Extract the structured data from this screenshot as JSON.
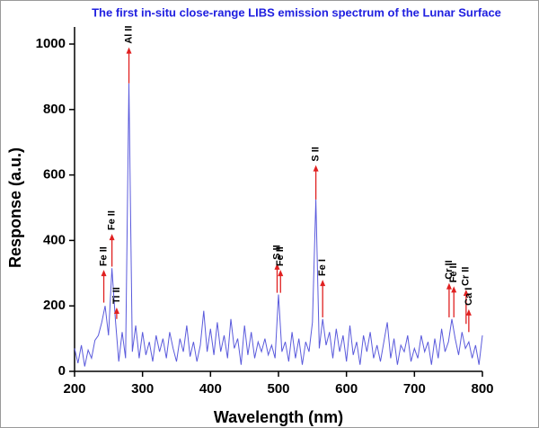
{
  "chart_data": {
    "type": "line",
    "title": "The first in-situ close-range LIBS emission spectrum of the Lunar Surface",
    "x_label": "Wavelength (nm)",
    "y_label": "Response (a.u.)",
    "x": [
      200,
      205,
      210,
      215,
      220,
      225,
      230,
      235,
      240,
      245,
      250,
      255,
      260,
      265,
      270,
      275,
      280,
      285,
      290,
      295,
      300,
      305,
      310,
      315,
      320,
      325,
      330,
      335,
      340,
      345,
      350,
      355,
      360,
      365,
      370,
      375,
      380,
      385,
      390,
      395,
      400,
      405,
      410,
      415,
      420,
      425,
      430,
      435,
      440,
      445,
      450,
      455,
      460,
      465,
      470,
      475,
      480,
      485,
      490,
      495,
      500,
      505,
      510,
      515,
      520,
      525,
      530,
      535,
      540,
      545,
      550,
      555,
      560,
      565,
      570,
      575,
      580,
      585,
      590,
      595,
      600,
      605,
      610,
      615,
      620,
      625,
      630,
      635,
      640,
      645,
      650,
      655,
      660,
      665,
      670,
      675,
      680,
      685,
      690,
      695,
      700,
      705,
      710,
      715,
      720,
      725,
      730,
      735,
      740,
      745,
      750,
      755,
      760,
      765,
      770,
      775,
      780,
      785,
      790,
      795,
      800
    ],
    "values": [
      70,
      25,
      80,
      15,
      65,
      40,
      95,
      110,
      150,
      200,
      110,
      315,
      160,
      30,
      120,
      40,
      880,
      60,
      140,
      40,
      120,
      50,
      90,
      30,
      110,
      60,
      100,
      40,
      120,
      70,
      30,
      100,
      60,
      140,
      45,
      90,
      30,
      80,
      185,
      60,
      130,
      50,
      150,
      60,
      110,
      40,
      160,
      70,
      100,
      20,
      140,
      50,
      120,
      40,
      90,
      60,
      100,
      50,
      80,
      40,
      235,
      60,
      90,
      30,
      120,
      40,
      100,
      20,
      90,
      60,
      150,
      525,
      70,
      160,
      80,
      120,
      40,
      130,
      60,
      110,
      30,
      140,
      50,
      90,
      20,
      110,
      60,
      120,
      40,
      80,
      30,
      90,
      150,
      40,
      100,
      20,
      80,
      60,
      110,
      30,
      70,
      40,
      110,
      60,
      90,
      20,
      100,
      40,
      130,
      60,
      90,
      160,
      100,
      50,
      120,
      70,
      90,
      40,
      80,
      20,
      110
    ],
    "color": "#5a5adc",
    "annotations": [
      {
        "label": "Fe II",
        "x": 243,
        "arrow": [
          210,
          310
        ]
      },
      {
        "label": "Fe II",
        "x": 255,
        "arrow": [
          320,
          420
        ]
      },
      {
        "label": "Ti II",
        "x": 262,
        "arrow": [
          160,
          195
        ]
      },
      {
        "label": "Al II",
        "x": 280,
        "arrow": [
          880,
          990
        ]
      },
      {
        "label": "S II",
        "x": 498,
        "arrow": [
          240,
          330
        ]
      },
      {
        "label": "Fe II",
        "x": 503,
        "arrow": [
          240,
          310
        ]
      },
      {
        "label": "S II",
        "x": 555,
        "arrow": [
          525,
          630
        ]
      },
      {
        "label": "Fe I",
        "x": 565,
        "arrow": [
          165,
          280
        ]
      },
      {
        "label": "Cr II",
        "x": 751,
        "arrow": [
          165,
          270
        ]
      },
      {
        "label": "Fe II",
        "x": 758,
        "arrow": [
          165,
          260
        ]
      },
      {
        "label": "Cr II",
        "x": 776,
        "arrow": [
          145,
          250
        ]
      },
      {
        "label": "Ca I",
        "x": 780,
        "arrow": [
          120,
          190
        ]
      }
    ],
    "arrow_color": "#e02020",
    "xlim": [
      200,
      800
    ],
    "xticks": [
      200,
      300,
      400,
      500,
      600,
      700,
      800
    ],
    "ylim": [
      0,
      1000
    ],
    "yticks": [
      0,
      200,
      400,
      600,
      800,
      1000
    ]
  }
}
